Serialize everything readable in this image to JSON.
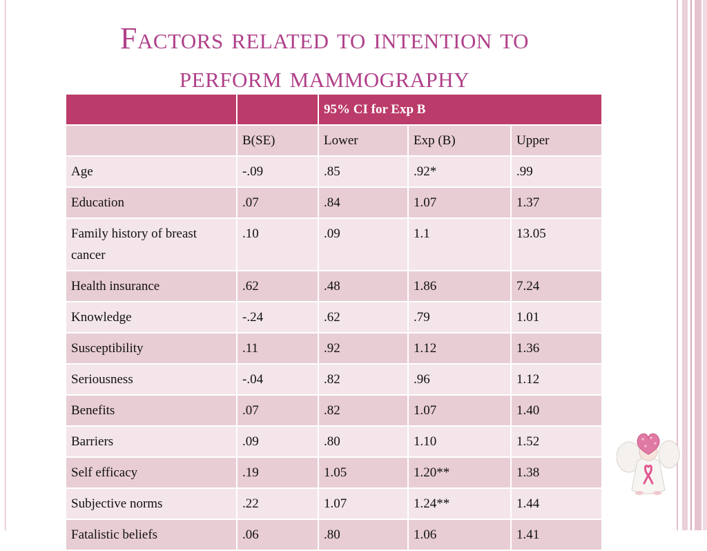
{
  "slide": {
    "title_line1": "Factors related to intention to",
    "title_line2": "perform mammography"
  },
  "table": {
    "group_header": "95% CI for Exp B",
    "columns": [
      "",
      "B(SE)",
      "Lower",
      "Exp (B)",
      "Upper"
    ],
    "rows": [
      [
        "Age",
        "-.09",
        ".85",
        ".92*",
        ".99"
      ],
      [
        "Education",
        ".07",
        ".84",
        "1.07",
        "1.37"
      ],
      [
        "Family history of breast cancer",
        ".10",
        ".09",
        "1.1",
        "13.05"
      ],
      [
        "Health insurance",
        ".62",
        ".48",
        "1.86",
        "7.24"
      ],
      [
        "Knowledge",
        "-.24",
        ".62",
        ".79",
        "1.01"
      ],
      [
        "Susceptibility",
        ".11",
        ".92",
        "1.12",
        "1.36"
      ],
      [
        "Seriousness",
        "-.04",
        ".82",
        ".96",
        "1.12"
      ],
      [
        "Benefits",
        ".07",
        ".82",
        "1.07",
        "1.40"
      ],
      [
        "Barriers",
        ".09",
        ".80",
        "1.10",
        "1.52"
      ],
      [
        "Self efficacy",
        ".19",
        "1.05",
        "1.20**",
        "1.38"
      ],
      [
        "Subjective norms",
        ".22",
        "1.07",
        "1.24**",
        "1.44"
      ],
      [
        "Fatalistic beliefs",
        ".06",
        ".80",
        "1.06",
        "1.41"
      ]
    ]
  },
  "colors": {
    "title": "#b0408a",
    "header_bg": "#bb3b6a",
    "row_dark": "#e8cdd4",
    "row_light": "#f3e5e9"
  },
  "icons": [
    "pink-ribbon-angel-icon"
  ]
}
